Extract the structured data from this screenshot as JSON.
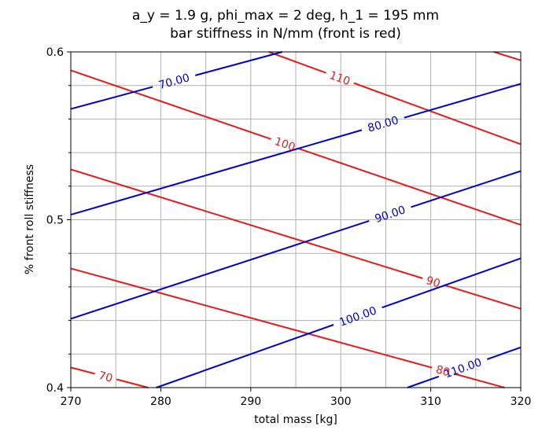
{
  "chart_data": {
    "type": "line",
    "title_line1": "a_y = 1.9 g, phi_max = 2 deg, h_1 = 195 mm",
    "title_line2": "bar stiffness in N/mm (front is red)",
    "xlabel": "total mass [kg]",
    "ylabel": "% front roll stiffness",
    "xlim": [
      270,
      320
    ],
    "ylim": [
      0.4,
      0.6
    ],
    "x_ticks": [
      "270",
      "280",
      "290",
      "300",
      "310",
      "320"
    ],
    "y_ticks": [
      "0.4",
      "0.5",
      "0.6"
    ],
    "grid": true,
    "colors": {
      "front": "#e41a1c",
      "rear": "#0000cc",
      "grid": "#b0b0b0"
    },
    "series": [
      {
        "group": "front",
        "label": "70",
        "x": [
          270,
          278.6
        ],
        "y": [
          0.412,
          0.4
        ],
        "label_at": [
          273.8,
          0.405
        ]
      },
      {
        "group": "front",
        "label": "80",
        "x": [
          270,
          318.2
        ],
        "y": [
          0.471,
          0.4
        ],
        "label_at": [
          311.3,
          0.409
        ]
      },
      {
        "group": "front",
        "label": "90",
        "x": [
          270,
          320
        ],
        "y": [
          0.53,
          0.447
        ],
        "label_at": [
          310.1,
          0.46
        ]
      },
      {
        "group": "front",
        "label": "100",
        "x": [
          270,
          320
        ],
        "y": [
          0.589,
          0.497
        ],
        "label_at": [
          293.8,
          0.545
        ]
      },
      {
        "group": "front",
        "label": "110",
        "x": [
          292,
          320
        ],
        "y": [
          0.6,
          0.545
        ],
        "label_at": [
          299.6,
          0.58
        ]
      },
      {
        "group": "front",
        "label": "",
        "x": [
          317,
          320
        ],
        "y": [
          0.6,
          0.595
        ],
        "label_at": null
      },
      {
        "group": "rear",
        "label": "70.00",
        "x": [
          270,
          293.5
        ],
        "y": [
          0.566,
          0.6
        ],
        "label_at": [
          281.5,
          0.582
        ]
      },
      {
        "group": "rear",
        "label": "80.00",
        "x": [
          270,
          320
        ],
        "y": [
          0.503,
          0.581
        ],
        "label_at": [
          304.7,
          0.557
        ]
      },
      {
        "group": "rear",
        "label": "90.00",
        "x": [
          270,
          320
        ],
        "y": [
          0.441,
          0.529
        ],
        "label_at": [
          305.5,
          0.503
        ]
      },
      {
        "group": "rear",
        "label": "100.00",
        "x": [
          279.5,
          320
        ],
        "y": [
          0.4,
          0.477
        ],
        "label_at": [
          301.8,
          0.444
        ]
      },
      {
        "group": "rear",
        "label": "110.00",
        "x": [
          307.4,
          320
        ],
        "y": [
          0.4,
          0.424
        ],
        "label_at": [
          313.5,
          0.413
        ]
      }
    ]
  }
}
